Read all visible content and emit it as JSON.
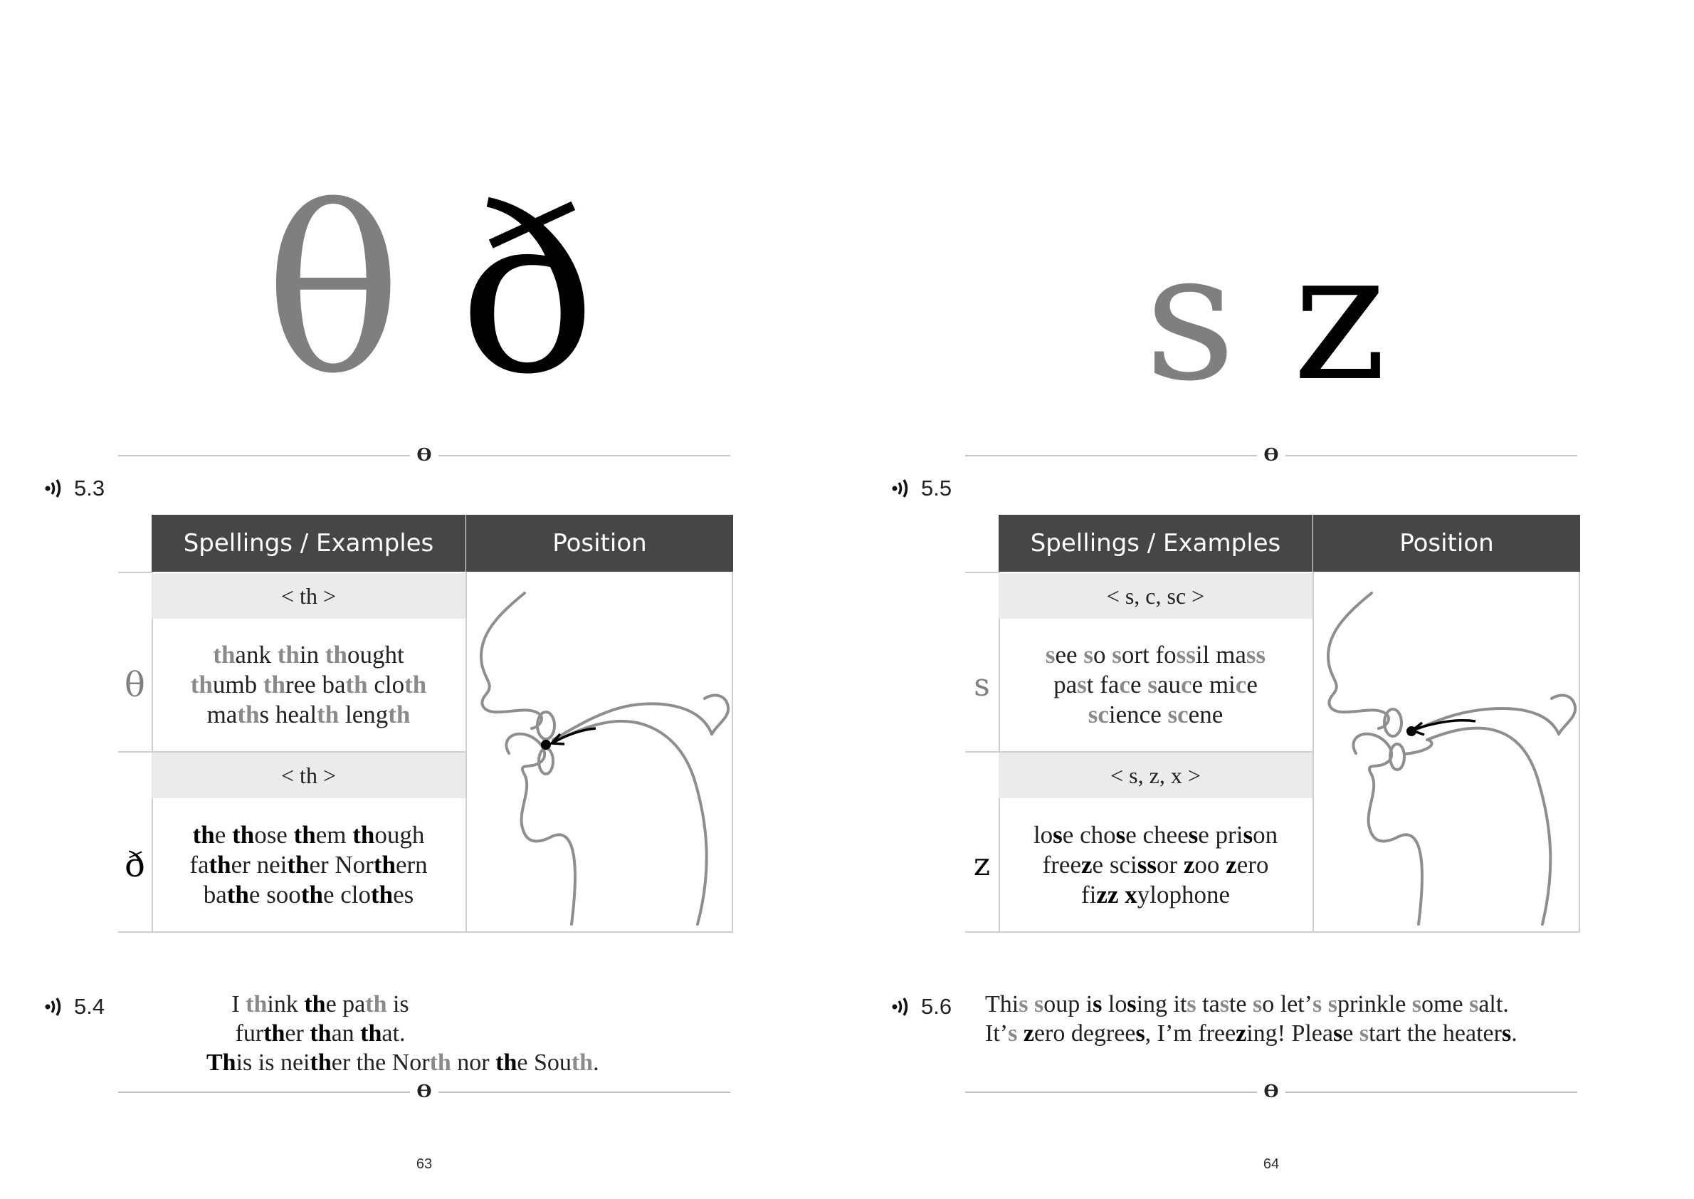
{
  "pages": [
    {
      "symbols": [
        "θ",
        "ð"
      ],
      "table_track": "5.3",
      "table": {
        "header": [
          "Spellings / Examples",
          "Position"
        ],
        "rows": [
          {
            "symbol": "θ",
            "spelling": "< th >",
            "lines": [
              "thank  thin  thought",
              "thumb  three  bath  cloth",
              "maths  health  length"
            ]
          },
          {
            "symbol": "ð",
            "spelling": "< th >",
            "lines": [
              "the  those  them  though",
              "father  neither  Northern",
              "bathe  soothe  clothes"
            ]
          }
        ]
      },
      "sentence_track": "5.4",
      "sentences": [
        "I think the path is further than that.",
        "This is neither the North nor the South."
      ],
      "page_number": "63"
    },
    {
      "symbols": [
        "s",
        "z"
      ],
      "table_track": "5.5",
      "table": {
        "header": [
          "Spellings / Examples",
          "Position"
        ],
        "rows": [
          {
            "symbol": "s",
            "spelling": "< s, c, sc >",
            "lines": [
              "see  so  sort  fossil  mass",
              "past  face  sauce  mice",
              "science  scene"
            ]
          },
          {
            "symbol": "z",
            "spelling": "< s, z, x >",
            "lines": [
              "lose  chose  cheese  prison",
              "freeze  scissor  zoo  zero",
              "fizz  xylophone"
            ]
          }
        ]
      },
      "sentence_track": "5.6",
      "sentences": [
        "This soup is losing its taste so let’s sprinkle some salt.",
        "It’s zero degrees, I’m freezing! Please start the heaters."
      ],
      "page_number": "64"
    }
  ],
  "ornament": "ϴ",
  "icons": {
    "audio": "audio-waves-icon"
  },
  "colors": {
    "voiceless": "#7f7f7f",
    "voiced": "#000000",
    "header_bg": "#464646",
    "spelling_bg": "#ebebeb"
  }
}
